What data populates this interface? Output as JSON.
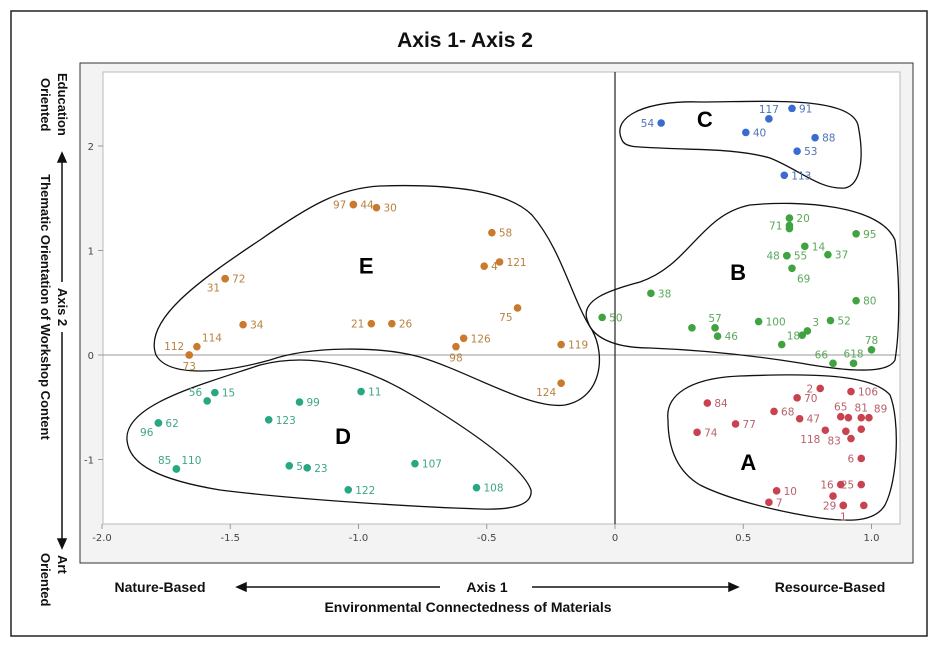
{
  "chart_data": {
    "type": "scatter",
    "title": "Axis 1- Axis 2",
    "xlabel": "Axis 1",
    "xlabel_sub": "Environmental Connectedness of Materials",
    "x_left_label": "Nature-Based",
    "x_right_label": "Resource-Based",
    "ylabel": "Axis 2",
    "ylabel_sub": "Thematic Orientation of Workshop Content",
    "y_top_label": [
      "Education",
      "Oriented"
    ],
    "y_bottom_label": [
      "Art",
      "Oriented"
    ],
    "xlim": [
      -2.0,
      1.1
    ],
    "ylim": [
      -1.6,
      2.5
    ],
    "xticks": [
      "-2.0",
      "-1.5",
      "-1.0",
      "-0.5",
      "0",
      "0.5",
      "1.0"
    ],
    "xtick_values": [
      -2.0,
      -1.5,
      -1.0,
      -0.5,
      0,
      0.5,
      1.0
    ],
    "yticks": [
      "2",
      "1",
      "0",
      "-1"
    ],
    "ytick_values": [
      2,
      1,
      0,
      -1
    ],
    "clusters": [
      {
        "name": "A",
        "color": "#c9424f",
        "label_color": "#b9606b",
        "letter_pos": [
          0.52,
          -1.1
        ],
        "points": [
          {
            "label": "2",
            "x": 0.8,
            "y": -0.32,
            "pos": "left"
          },
          {
            "label": "106",
            "x": 0.92,
            "y": -0.35,
            "pos": "right"
          },
          {
            "label": "84",
            "x": 0.36,
            "y": -0.46,
            "pos": "right"
          },
          {
            "label": "70",
            "x": 0.71,
            "y": -0.41,
            "pos": "right"
          },
          {
            "label": "68",
            "x": 0.62,
            "y": -0.54,
            "pos": "right"
          },
          {
            "label": "47",
            "x": 0.72,
            "y": -0.61,
            "pos": "right"
          },
          {
            "label": "65",
            "x": 0.88,
            "y": -0.59,
            "pos": "above"
          },
          {
            "label": "",
            "x": 0.91,
            "y": -0.6,
            "pos": "right"
          },
          {
            "label": "81",
            "x": 0.96,
            "y": -0.6,
            "pos": "above"
          },
          {
            "label": "89",
            "x": 0.99,
            "y": -0.6,
            "pos": "aboveright"
          },
          {
            "label": "77",
            "x": 0.47,
            "y": -0.66,
            "pos": "right"
          },
          {
            "label": "74",
            "x": 0.32,
            "y": -0.74,
            "pos": "right"
          },
          {
            "label": "118",
            "x": 0.82,
            "y": -0.72,
            "pos": "belowleft"
          },
          {
            "label": "83",
            "x": 0.9,
            "y": -0.73,
            "pos": "belowleft"
          },
          {
            "label": "",
            "x": 0.96,
            "y": -0.71,
            "pos": "right"
          },
          {
            "label": "",
            "x": 0.92,
            "y": -0.8,
            "pos": "right"
          },
          {
            "label": "6",
            "x": 0.96,
            "y": -0.99,
            "pos": "left"
          },
          {
            "label": "16",
            "x": 0.88,
            "y": -1.24,
            "pos": "left"
          },
          {
            "label": "25",
            "x": 0.96,
            "y": -1.24,
            "pos": "left"
          },
          {
            "label": "10",
            "x": 0.63,
            "y": -1.3,
            "pos": "right"
          },
          {
            "label": "",
            "x": 0.85,
            "y": -1.35,
            "pos": "right"
          },
          {
            "label": "7",
            "x": 0.6,
            "y": -1.41,
            "pos": "right"
          },
          {
            "label": "29",
            "x": 0.89,
            "y": -1.44,
            "pos": "left"
          },
          {
            "label": "1",
            "x": 0.89,
            "y": -1.44,
            "pos": "below"
          },
          {
            "label": "",
            "x": 0.97,
            "y": -1.44,
            "pos": "right"
          }
        ]
      },
      {
        "name": "B",
        "color": "#3fa33f",
        "label_color": "#5aa85a",
        "letter_pos": [
          0.48,
          0.72
        ],
        "points": [
          {
            "label": "20",
            "x": 0.68,
            "y": 1.31,
            "pos": "right"
          },
          {
            "label": "71",
            "x": 0.68,
            "y": 1.24,
            "pos": "left"
          },
          {
            "label": "",
            "x": 0.68,
            "y": 1.21,
            "pos": "right"
          },
          {
            "label": "95",
            "x": 0.94,
            "y": 1.16,
            "pos": "right"
          },
          {
            "label": "14",
            "x": 0.74,
            "y": 1.04,
            "pos": "right"
          },
          {
            "label": "37",
            "x": 0.83,
            "y": 0.96,
            "pos": "right"
          },
          {
            "label": "48",
            "x": 0.67,
            "y": 0.95,
            "pos": "left"
          },
          {
            "label": "55",
            "x": 0.67,
            "y": 0.95,
            "pos": "right"
          },
          {
            "label": "69",
            "x": 0.69,
            "y": 0.83,
            "pos": "belowright"
          },
          {
            "label": "38",
            "x": 0.14,
            "y": 0.59,
            "pos": "right"
          },
          {
            "label": "80",
            "x": 0.94,
            "y": 0.52,
            "pos": "right"
          },
          {
            "label": "50",
            "x": -0.05,
            "y": 0.36,
            "pos": "right"
          },
          {
            "label": "57",
            "x": 0.39,
            "y": 0.26,
            "pos": "above"
          },
          {
            "label": "",
            "x": 0.3,
            "y": 0.26,
            "pos": "right"
          },
          {
            "label": "46",
            "x": 0.4,
            "y": 0.18,
            "pos": "right"
          },
          {
            "label": "100",
            "x": 0.56,
            "y": 0.32,
            "pos": "right"
          },
          {
            "label": "3",
            "x": 0.75,
            "y": 0.23,
            "pos": "aboveright"
          },
          {
            "label": "",
            "x": 0.73,
            "y": 0.19,
            "pos": "right"
          },
          {
            "label": "18",
            "x": 0.65,
            "y": 0.1,
            "pos": "aboveright"
          },
          {
            "label": "52",
            "x": 0.84,
            "y": 0.33,
            "pos": "right"
          },
          {
            "label": "78",
            "x": 1.0,
            "y": 0.05,
            "pos": "above"
          },
          {
            "label": "66",
            "x": 0.85,
            "y": -0.08,
            "pos": "aboveleft"
          },
          {
            "label": "618",
            "x": 0.93,
            "y": -0.08,
            "pos": "above"
          }
        ]
      },
      {
        "name": "C",
        "color": "#3a6bd0",
        "label_color": "#4f72b8",
        "letter_pos": [
          0.35,
          2.18
        ],
        "points": [
          {
            "label": "54",
            "x": 0.18,
            "y": 2.22,
            "pos": "left"
          },
          {
            "label": "117",
            "x": 0.6,
            "y": 2.26,
            "pos": "above"
          },
          {
            "label": "91",
            "x": 0.69,
            "y": 2.36,
            "pos": "right"
          },
          {
            "label": "40",
            "x": 0.51,
            "y": 2.13,
            "pos": "right"
          },
          {
            "label": "88",
            "x": 0.78,
            "y": 2.08,
            "pos": "right"
          },
          {
            "label": "53",
            "x": 0.71,
            "y": 1.95,
            "pos": "right"
          },
          {
            "label": "113",
            "x": 0.66,
            "y": 1.72,
            "pos": "right"
          }
        ]
      },
      {
        "name": "D",
        "color": "#27a883",
        "label_color": "#3fa58a",
        "letter_pos": [
          -1.06,
          -0.85
        ],
        "points": [
          {
            "label": "15",
            "x": -1.56,
            "y": -0.36,
            "pos": "right"
          },
          {
            "label": "56",
            "x": -1.59,
            "y": -0.44,
            "pos": "aboveleft"
          },
          {
            "label": "99",
            "x": -1.23,
            "y": -0.45,
            "pos": "right"
          },
          {
            "label": "11",
            "x": -0.99,
            "y": -0.35,
            "pos": "right"
          },
          {
            "label": "62",
            "x": -1.78,
            "y": -0.65,
            "pos": "right"
          },
          {
            "label": "96",
            "x": -1.78,
            "y": -0.65,
            "pos": "belowleft"
          },
          {
            "label": "123",
            "x": -1.35,
            "y": -0.62,
            "pos": "right"
          },
          {
            "label": "85",
            "x": -1.71,
            "y": -1.09,
            "pos": "aboveleft"
          },
          {
            "label": "110",
            "x": -1.71,
            "y": -1.09,
            "pos": "aboveright"
          },
          {
            "label": "5",
            "x": -1.27,
            "y": -1.06,
            "pos": "right"
          },
          {
            "label": "23",
            "x": -1.2,
            "y": -1.08,
            "pos": "right"
          },
          {
            "label": "107",
            "x": -0.78,
            "y": -1.04,
            "pos": "right"
          },
          {
            "label": "122",
            "x": -1.04,
            "y": -1.29,
            "pos": "right"
          },
          {
            "label": "108",
            "x": -0.54,
            "y": -1.27,
            "pos": "right"
          }
        ]
      },
      {
        "name": "E",
        "color": "#c97a2c",
        "label_color": "#b8823f",
        "letter_pos": [
          -0.97,
          0.78
        ],
        "points": [
          {
            "label": "97",
            "x": -1.02,
            "y": 1.44,
            "pos": "left"
          },
          {
            "label": "44",
            "x": -1.02,
            "y": 1.44,
            "pos": "right"
          },
          {
            "label": "30",
            "x": -0.93,
            "y": 1.41,
            "pos": "right"
          },
          {
            "label": "58",
            "x": -0.48,
            "y": 1.17,
            "pos": "right"
          },
          {
            "label": "4",
            "x": -0.51,
            "y": 0.85,
            "pos": "right"
          },
          {
            "label": "121",
            "x": -0.45,
            "y": 0.89,
            "pos": "right"
          },
          {
            "label": "31",
            "x": -1.52,
            "y": 0.73,
            "pos": "belowleft"
          },
          {
            "label": "72",
            "x": -1.52,
            "y": 0.73,
            "pos": "right"
          },
          {
            "label": "34",
            "x": -1.45,
            "y": 0.29,
            "pos": "right"
          },
          {
            "label": "21",
            "x": -0.95,
            "y": 0.3,
            "pos": "left"
          },
          {
            "label": "26",
            "x": -0.87,
            "y": 0.3,
            "pos": "right"
          },
          {
            "label": "75",
            "x": -0.38,
            "y": 0.45,
            "pos": "belowleft"
          },
          {
            "label": "126",
            "x": -0.59,
            "y": 0.16,
            "pos": "right"
          },
          {
            "label": "98",
            "x": -0.62,
            "y": 0.08,
            "pos": "below"
          },
          {
            "label": "119",
            "x": -0.21,
            "y": 0.1,
            "pos": "right"
          },
          {
            "label": "124",
            "x": -0.21,
            "y": -0.27,
            "pos": "belowleft"
          },
          {
            "label": "114",
            "x": -1.63,
            "y": 0.08,
            "pos": "aboveright"
          },
          {
            "label": "112",
            "x": -1.66,
            "y": 0.0,
            "pos": "aboveleft"
          },
          {
            "label": "73",
            "x": -1.66,
            "y": 0.0,
            "pos": "below"
          }
        ]
      }
    ]
  }
}
